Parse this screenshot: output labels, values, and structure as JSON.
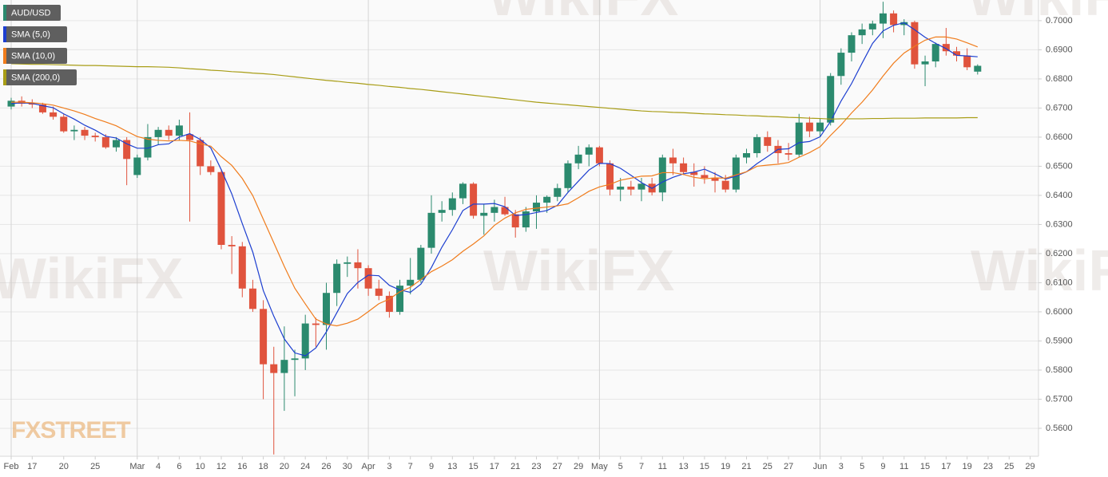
{
  "chart_data": {
    "type": "candlestick",
    "watermark": "WikiFX",
    "logo": "FXSTREET",
    "grid": true,
    "legend": "top-left",
    "ylim": [
      0.5504,
      0.7071
    ],
    "yticks": [
      {
        "value": 0.56,
        "label": "0.5600"
      },
      {
        "value": 0.57,
        "label": "0.5700"
      },
      {
        "value": 0.58,
        "label": "0.5800"
      },
      {
        "value": 0.59,
        "label": "0.5900"
      },
      {
        "value": 0.6,
        "label": "0.6000"
      },
      {
        "value": 0.61,
        "label": "0.6100"
      },
      {
        "value": 0.62,
        "label": "0.6200"
      },
      {
        "value": 0.63,
        "label": "0.6300"
      },
      {
        "value": 0.64,
        "label": "0.6400"
      },
      {
        "value": 0.65,
        "label": "0.6500"
      },
      {
        "value": 0.66,
        "label": "0.6600"
      },
      {
        "value": 0.67,
        "label": "0.6700"
      },
      {
        "value": 0.68,
        "label": "0.6800"
      },
      {
        "value": 0.69,
        "label": "0.6900"
      },
      {
        "value": 0.7,
        "label": "0.7000"
      }
    ],
    "categories": [
      "Feb",
      null,
      "17",
      null,
      null,
      "20",
      null,
      null,
      "25",
      null,
      null,
      null,
      "Mar",
      null,
      "4",
      null,
      "6",
      null,
      "10",
      null,
      "12",
      null,
      "16",
      null,
      "18",
      null,
      "20",
      null,
      "24",
      null,
      "26",
      null,
      "30",
      null,
      "Apr",
      null,
      "3",
      null,
      "7",
      null,
      "9",
      null,
      "13",
      null,
      "15",
      null,
      "17",
      null,
      "21",
      null,
      "23",
      null,
      "27",
      null,
      "29",
      null,
      "May",
      null,
      "5",
      null,
      "7",
      null,
      "11",
      null,
      "13",
      null,
      "15",
      null,
      "19",
      null,
      "21",
      null,
      "25",
      null,
      "27",
      null,
      null,
      "Jun",
      null,
      "3",
      null,
      "5",
      null,
      "9",
      null,
      "11",
      null,
      "15",
      null,
      "17",
      null,
      "19",
      null,
      "23",
      null,
      "25",
      null,
      "29"
    ],
    "candles": {
      "name": "AUD/USD",
      "color": "#2b8a6e",
      "up_color": "#2b8a6e",
      "down_color": "#e0533d",
      "open": [
        0.6705,
        0.6725,
        0.6715,
        0.6712,
        0.6685,
        0.667,
        0.662,
        0.6625,
        0.6605,
        0.66,
        0.6565,
        0.659,
        0.647,
        0.653,
        0.66,
        0.6625,
        0.6605,
        0.661,
        0.659,
        0.65,
        0.648,
        0.623,
        0.6225,
        0.608,
        0.601,
        0.582,
        0.579,
        0.5835,
        0.584,
        0.596,
        0.5955,
        0.6065,
        0.6165,
        0.617,
        0.615,
        0.608,
        0.6055,
        0.6,
        0.609,
        0.611,
        0.622,
        0.634,
        0.635,
        0.639,
        0.644,
        0.633,
        0.634,
        0.636,
        0.6335,
        0.629,
        0.6345,
        0.6375,
        0.6395,
        0.6425,
        0.651,
        0.654,
        0.6565,
        0.651,
        0.642,
        0.643,
        0.642,
        0.644,
        0.641,
        0.653,
        0.651,
        0.648,
        0.647,
        0.646,
        0.645,
        0.642,
        0.653,
        0.6545,
        0.66,
        0.657,
        0.6545,
        0.654,
        0.665,
        0.662,
        0.665,
        0.681,
        0.689,
        0.695,
        0.697,
        0.699,
        0.7025,
        0.6985,
        0.6995,
        0.685,
        0.686,
        0.692,
        0.6895,
        0.688,
        0.6825,
        null,
        null,
        null,
        null,
        null
      ],
      "high": [
        0.6735,
        0.674,
        0.673,
        0.6718,
        0.6705,
        0.668,
        0.664,
        0.6635,
        0.6615,
        0.661,
        0.66,
        0.66,
        0.654,
        0.6645,
        0.6635,
        0.664,
        0.666,
        0.6685,
        0.66,
        0.652,
        0.649,
        0.626,
        0.624,
        0.611,
        0.604,
        0.588,
        0.595,
        0.587,
        0.599,
        0.598,
        0.61,
        0.618,
        0.619,
        0.6215,
        0.616,
        0.611,
        0.607,
        0.611,
        0.6185,
        0.623,
        0.64,
        0.638,
        0.641,
        0.6445,
        0.6445,
        0.637,
        0.6385,
        0.6395,
        0.635,
        0.636,
        0.64,
        0.64,
        0.644,
        0.652,
        0.657,
        0.6575,
        0.657,
        0.652,
        0.646,
        0.645,
        0.646,
        0.646,
        0.654,
        0.656,
        0.653,
        0.651,
        0.65,
        0.648,
        0.647,
        0.654,
        0.656,
        0.661,
        0.662,
        0.659,
        0.658,
        0.668,
        0.667,
        0.6665,
        0.682,
        0.6905,
        0.696,
        0.699,
        0.7,
        0.7065,
        0.7035,
        0.7005,
        0.7,
        0.688,
        0.6925,
        0.6975,
        0.691,
        0.6905,
        0.685,
        null,
        null,
        null,
        null,
        null
      ],
      "low": [
        0.6695,
        0.6705,
        0.67,
        0.668,
        0.666,
        0.6615,
        0.659,
        0.659,
        0.6585,
        0.656,
        0.655,
        0.6435,
        0.646,
        0.652,
        0.6575,
        0.659,
        0.659,
        0.631,
        0.647,
        0.647,
        0.6215,
        0.613,
        0.605,
        0.6,
        0.57,
        0.551,
        0.566,
        0.571,
        0.58,
        0.588,
        0.587,
        0.602,
        0.612,
        0.608,
        0.6055,
        0.604,
        0.598,
        0.599,
        0.606,
        0.61,
        0.62,
        0.631,
        0.633,
        0.637,
        0.632,
        0.6265,
        0.631,
        0.633,
        0.6255,
        0.6275,
        0.6285,
        0.634,
        0.638,
        0.641,
        0.649,
        0.65,
        0.65,
        0.64,
        0.638,
        0.64,
        0.638,
        0.64,
        0.638,
        0.647,
        0.647,
        0.643,
        0.644,
        0.641,
        0.641,
        0.641,
        0.651,
        0.653,
        0.655,
        0.651,
        0.652,
        0.653,
        0.66,
        0.66,
        0.664,
        0.678,
        0.686,
        0.692,
        0.695,
        0.694,
        0.696,
        0.695,
        0.6835,
        0.6775,
        0.684,
        0.688,
        0.686,
        0.683,
        0.6815,
        null,
        null,
        null,
        null,
        null
      ],
      "close": [
        0.6725,
        0.6715,
        0.6712,
        0.6685,
        0.667,
        0.662,
        0.6625,
        0.6605,
        0.66,
        0.6565,
        0.659,
        0.6525,
        0.653,
        0.66,
        0.6625,
        0.6605,
        0.664,
        0.659,
        0.65,
        0.648,
        0.623,
        0.6225,
        0.608,
        0.601,
        0.582,
        0.579,
        0.5835,
        0.584,
        0.596,
        0.5955,
        0.6065,
        0.6165,
        0.617,
        0.615,
        0.608,
        0.6055,
        0.6,
        0.609,
        0.611,
        0.622,
        0.634,
        0.635,
        0.639,
        0.644,
        0.633,
        0.634,
        0.636,
        0.6335,
        0.629,
        0.6345,
        0.6375,
        0.6395,
        0.6425,
        0.651,
        0.654,
        0.6565,
        0.651,
        0.642,
        0.643,
        0.642,
        0.644,
        0.641,
        0.653,
        0.651,
        0.648,
        0.647,
        0.646,
        0.645,
        0.642,
        0.653,
        0.6545,
        0.66,
        0.657,
        0.6545,
        0.654,
        0.665,
        0.662,
        0.665,
        0.681,
        0.689,
        0.695,
        0.697,
        0.699,
        0.7025,
        0.6985,
        0.6995,
        0.685,
        0.686,
        0.692,
        0.6895,
        0.688,
        0.684,
        0.6845,
        null,
        null,
        null,
        null,
        null
      ]
    },
    "series": [
      {
        "name": "SMA (5,0)",
        "color": "#1d3fd0",
        "values": [
          0.6715,
          0.6718,
          0.6716,
          0.6708,
          0.6701,
          0.668,
          0.6662,
          0.6641,
          0.6624,
          0.6603,
          0.6597,
          0.6577,
          0.6562,
          0.6562,
          0.6574,
          0.6577,
          0.66,
          0.6612,
          0.6592,
          0.6563,
          0.6488,
          0.6405,
          0.6303,
          0.6205,
          0.6073,
          0.5985,
          0.5907,
          0.5859,
          0.5849,
          0.5876,
          0.5931,
          0.5997,
          0.6063,
          0.6101,
          0.6126,
          0.6124,
          0.6091,
          0.6075,
          0.6067,
          0.6095,
          0.6152,
          0.6222,
          0.6282,
          0.6348,
          0.637,
          0.637,
          0.6372,
          0.6361,
          0.6331,
          0.6334,
          0.6341,
          0.6348,
          0.6366,
          0.641,
          0.6449,
          0.6487,
          0.651,
          0.6509,
          0.6493,
          0.6469,
          0.6444,
          0.6424,
          0.6446,
          0.6462,
          0.6474,
          0.648,
          0.649,
          0.6474,
          0.6456,
          0.6466,
          0.6481,
          0.6509,
          0.6533,
          0.6558,
          0.656,
          0.6581,
          0.6585,
          0.6601,
          0.6654,
          0.6724,
          0.6784,
          0.6854,
          0.6922,
          0.6965,
          0.6984,
          0.6993,
          0.6969,
          0.6943,
          0.6922,
          0.6904,
          0.6881,
          0.6879,
          0.6876,
          null,
          null,
          null,
          null,
          null
        ]
      },
      {
        "name": "SMA (10,0)",
        "color": "#f07c1c",
        "values": [
          0.672,
          0.672,
          0.6718,
          0.6715,
          0.671,
          0.67,
          0.669,
          0.6678,
          0.6664,
          0.6652,
          0.6639,
          0.662,
          0.6602,
          0.6593,
          0.6589,
          0.6587,
          0.6589,
          0.6587,
          0.6577,
          0.6569,
          0.6533,
          0.6503,
          0.6458,
          0.6399,
          0.6318,
          0.6237,
          0.6156,
          0.6081,
          0.6027,
          0.5975,
          0.5958,
          0.5952,
          0.5961,
          0.5975,
          0.6001,
          0.6028,
          0.6044,
          0.6069,
          0.6084,
          0.6111,
          0.6138,
          0.6157,
          0.6179,
          0.6208,
          0.6233,
          0.6261,
          0.6297,
          0.6322,
          0.634,
          0.6352,
          0.6356,
          0.636,
          0.6364,
          0.6371,
          0.6392,
          0.6414,
          0.6429,
          0.6438,
          0.6452,
          0.6459,
          0.6466,
          0.6467,
          0.6478,
          0.6478,
          0.6472,
          0.6462,
          0.6457,
          0.646,
          0.6459,
          0.647,
          0.6481,
          0.65,
          0.6504,
          0.6507,
          0.6513,
          0.6531,
          0.6547,
          0.6567,
          0.6606,
          0.6642,
          0.6683,
          0.672,
          0.6762,
          0.681,
          0.6854,
          0.6889,
          0.6912,
          0.6933,
          0.6944,
          0.6944,
          0.6937,
          0.6924,
          0.691,
          null,
          null,
          null,
          null,
          null
        ]
      },
      {
        "name": "SMA (200,0)",
        "color": "#a89d16",
        "values": [
          0.6852,
          0.6851,
          0.685,
          0.685,
          0.6849,
          0.6848,
          0.6847,
          0.6846,
          0.6846,
          0.6845,
          0.6844,
          0.6843,
          0.6842,
          0.6842,
          0.6841,
          0.684,
          0.6838,
          0.6835,
          0.6833,
          0.683,
          0.6828,
          0.6825,
          0.6823,
          0.682,
          0.6818,
          0.6815,
          0.6811,
          0.6807,
          0.6803,
          0.6799,
          0.6795,
          0.6792,
          0.6788,
          0.6785,
          0.6781,
          0.6778,
          0.6774,
          0.6771,
          0.6767,
          0.6764,
          0.676,
          0.6756,
          0.6752,
          0.6748,
          0.6744,
          0.674,
          0.6736,
          0.6732,
          0.6728,
          0.6724,
          0.672,
          0.6717,
          0.6714,
          0.6711,
          0.6708,
          0.6705,
          0.6702,
          0.6699,
          0.6696,
          0.6693,
          0.669,
          0.6688,
          0.6687,
          0.6685,
          0.6684,
          0.6682,
          0.668,
          0.6679,
          0.6677,
          0.6676,
          0.6674,
          0.6673,
          0.6671,
          0.667,
          0.6668,
          0.6667,
          0.6665,
          0.6664,
          0.6662,
          0.6663,
          0.6663,
          0.6663,
          0.6664,
          0.6664,
          0.6665,
          0.6665,
          0.6665,
          0.6666,
          0.6666,
          0.6666,
          0.6666,
          0.6667,
          0.6667,
          null,
          null,
          null,
          null,
          null
        ]
      }
    ]
  }
}
